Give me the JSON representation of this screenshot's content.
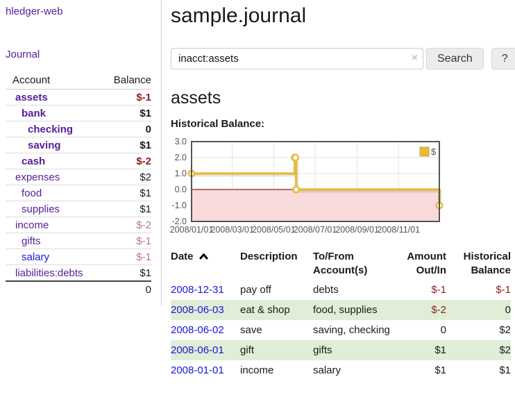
{
  "colors": {
    "link_purple": "#551e96",
    "link_blue": "#1616d9",
    "negative_strong": "#911c1c",
    "negative_muted": "#be7878",
    "row_stripe_green": "#e0eed8",
    "chart_line_yellow": "#e6bb3c",
    "chart_negative_region": "#fadada",
    "chart_zero_line": "#871e1e"
  },
  "sidebar": {
    "brand": "hledger-web",
    "journal_link": "Journal",
    "accounts_table": {
      "headers": {
        "account": "Account",
        "balance": "Balance"
      },
      "rows": [
        {
          "name": "assets",
          "balance": "$-1",
          "name_class": "ind0 bold",
          "bal_class": "bold neg"
        },
        {
          "name": "bank",
          "balance": "$1",
          "name_class": "ind1 bold",
          "bal_class": "bold"
        },
        {
          "name": "checking",
          "balance": "0",
          "name_class": "ind2 bold",
          "bal_class": "bold"
        },
        {
          "name": "saving",
          "balance": "$1",
          "name_class": "ind2 bold",
          "bal_class": "bold"
        },
        {
          "name": "cash",
          "balance": "$-2",
          "name_class": "ind1 bold",
          "bal_class": "bold neg"
        },
        {
          "name": "expenses",
          "balance": "$2",
          "name_class": "ind0",
          "bal_class": ""
        },
        {
          "name": "food",
          "balance": "$1",
          "name_class": "ind1",
          "bal_class": ""
        },
        {
          "name": "supplies",
          "balance": "$1",
          "name_class": "ind1",
          "bal_class": ""
        },
        {
          "name": "income",
          "balance": "$-2",
          "name_class": "ind0",
          "bal_class": "negmuted"
        },
        {
          "name": "gifts",
          "balance": "$-1",
          "name_class": "ind1",
          "bal_class": "negmuted"
        },
        {
          "name": "salary",
          "balance": "$-1",
          "name_class": "ind1 unvisited",
          "bal_class": "negmuted"
        },
        {
          "name": "liabilities:debts",
          "balance": "$1",
          "name_class": "ind0",
          "bal_class": ""
        }
      ],
      "total": "0"
    }
  },
  "header": {
    "title": "sample.journal"
  },
  "search": {
    "value": "inacct:assets",
    "clear_icon": "×",
    "search_button": "Search",
    "help_button": "?"
  },
  "register": {
    "heading": "assets",
    "chart_label": "Historical Balance:",
    "sort_column": "Date",
    "sort_direction": "ascending",
    "table": {
      "headers": {
        "date": "Date",
        "description": "Description",
        "accounts": "To/From Account(s)",
        "amount": "Amount Out/In",
        "balance": "Historical Balance"
      },
      "rows": [
        {
          "date": "2008-12-31",
          "description": "pay off",
          "accounts": "debts",
          "amount": "$-1",
          "balance": "$-1",
          "amount_class": "neg",
          "balance_class": "neg"
        },
        {
          "date": "2008-06-03",
          "description": "eat & shop",
          "accounts": "food, supplies",
          "amount": "$-2",
          "balance": "0",
          "amount_class": "neg",
          "balance_class": ""
        },
        {
          "date": "2008-06-02",
          "description": "save",
          "accounts": "saving, checking",
          "amount": "0",
          "balance": "$2",
          "amount_class": "",
          "balance_class": ""
        },
        {
          "date": "2008-06-01",
          "description": "gift",
          "accounts": "gifts",
          "amount": "$1",
          "balance": "$2",
          "amount_class": "",
          "balance_class": ""
        },
        {
          "date": "2008-01-01",
          "description": "income",
          "accounts": "salary",
          "amount": "$1",
          "balance": "$1",
          "amount_class": "",
          "balance_class": ""
        }
      ]
    }
  },
  "chart_data": {
    "type": "line",
    "step": true,
    "title": "Historical Balance:",
    "series": [
      {
        "name": "$",
        "color": "#e6bb3c",
        "points": [
          {
            "date": "2008-01-01",
            "value": 1
          },
          {
            "date": "2008-06-01",
            "value": 2
          },
          {
            "date": "2008-06-02",
            "value": 2
          },
          {
            "date": "2008-06-03",
            "value": 0
          },
          {
            "date": "2008-12-31",
            "value": -1
          }
        ]
      }
    ],
    "xlim": [
      "2008-01-01",
      "2008-12-31"
    ],
    "ylim": [
      -2,
      3
    ],
    "x_ticks": [
      {
        "date": "2008-01-01",
        "label": "2008/01/01"
      },
      {
        "date": "2008-03-01",
        "label": "2008/03/01"
      },
      {
        "date": "2008-05-01",
        "label": "2008/05/01"
      },
      {
        "date": "2008-07-01",
        "label": "2008/07/01"
      },
      {
        "date": "2008-09-01",
        "label": "2008/09/01"
      },
      {
        "date": "2008-11-01",
        "label": "2008/11/01"
      }
    ],
    "y_ticks": [
      {
        "value": 3,
        "label": "3.0"
      },
      {
        "value": 2,
        "label": "2.0"
      },
      {
        "value": 1,
        "label": "1.0"
      },
      {
        "value": 0,
        "label": "0.0"
      },
      {
        "value": -1,
        "label": "-1.0"
      },
      {
        "value": -2,
        "label": "-2.0"
      }
    ],
    "legend": {
      "label": "$",
      "position": "top-right"
    },
    "grid": true,
    "negative_region_color": "#fadada",
    "zero_line_color": "#871e1e"
  }
}
